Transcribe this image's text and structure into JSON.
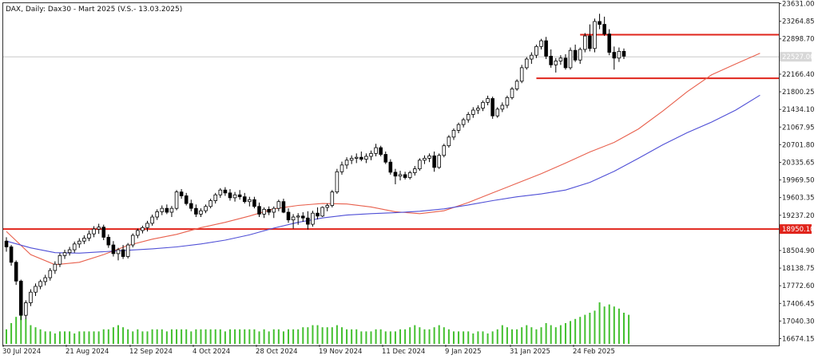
{
  "chart_data": {
    "type": "candlestick",
    "title": "DAX, Daily:  Dax30 - Mart 2025 (V.S.- 13.03.2025)",
    "current_price_label": "22527.00",
    "x_tick_labels": [
      "30 Jul 2024",
      "21 Aug 2024",
      "12 Sep 2024",
      "4 Oct 2024",
      "28 Oct 2024",
      "19 Nov 2024",
      "11 Dec 2024",
      "9 Jan 2025",
      "31 Jan 2025",
      "24 Feb 2025"
    ],
    "y_tick_labels": [
      "23631.00",
      "23264.85",
      "22898.70",
      "22166.40",
      "21800.25",
      "21434.10",
      "21067.95",
      "20701.80",
      "20335.65",
      "19969.50",
      "19603.35",
      "19237.20",
      "18504.90",
      "18138.75",
      "17772.60",
      "17406.45",
      "17040.30",
      "16674.15"
    ],
    "ylim": [
      16550,
      23640
    ],
    "horizontal_levels": [
      {
        "value": 18950.1,
        "label": "18950.10",
        "color": "#e0241b"
      },
      {
        "value": 22986,
        "label": "",
        "color": "#e0241b"
      },
      {
        "value": 22080,
        "label": "",
        "color": "#e0241b"
      }
    ],
    "moving_averages": [
      {
        "color": "#e8604d",
        "points": [
          [
            0,
            18900
          ],
          [
            5,
            18420
          ],
          [
            10,
            18210
          ],
          [
            15,
            18260
          ],
          [
            20,
            18420
          ],
          [
            25,
            18610
          ],
          [
            30,
            18740
          ],
          [
            35,
            18840
          ],
          [
            40,
            18980
          ],
          [
            45,
            19090
          ],
          [
            50,
            19220
          ],
          [
            55,
            19370
          ],
          [
            60,
            19440
          ],
          [
            65,
            19480
          ],
          [
            70,
            19470
          ],
          [
            75,
            19410
          ],
          [
            80,
            19310
          ],
          [
            85,
            19270
          ],
          [
            90,
            19330
          ],
          [
            95,
            19500
          ],
          [
            100,
            19700
          ],
          [
            105,
            19900
          ],
          [
            110,
            20100
          ],
          [
            115,
            20320
          ],
          [
            120,
            20550
          ],
          [
            125,
            20750
          ],
          [
            130,
            21030
          ],
          [
            135,
            21400
          ],
          [
            140,
            21800
          ],
          [
            145,
            22150
          ],
          [
            150,
            22380
          ],
          [
            155,
            22600
          ]
        ]
      },
      {
        "color": "#4f4fd6",
        "points": [
          [
            0,
            18700
          ],
          [
            5,
            18560
          ],
          [
            10,
            18460
          ],
          [
            15,
            18450
          ],
          [
            20,
            18480
          ],
          [
            25,
            18510
          ],
          [
            30,
            18540
          ],
          [
            35,
            18580
          ],
          [
            40,
            18640
          ],
          [
            45,
            18720
          ],
          [
            50,
            18830
          ],
          [
            55,
            18970
          ],
          [
            60,
            19090
          ],
          [
            65,
            19180
          ],
          [
            70,
            19240
          ],
          [
            75,
            19270
          ],
          [
            80,
            19290
          ],
          [
            85,
            19320
          ],
          [
            90,
            19370
          ],
          [
            95,
            19450
          ],
          [
            100,
            19540
          ],
          [
            105,
            19620
          ],
          [
            110,
            19680
          ],
          [
            115,
            19760
          ],
          [
            120,
            19920
          ],
          [
            125,
            20150
          ],
          [
            130,
            20420
          ],
          [
            135,
            20700
          ],
          [
            140,
            20950
          ],
          [
            145,
            21170
          ],
          [
            150,
            21420
          ],
          [
            155,
            21730
          ]
        ]
      }
    ],
    "ohlc": [
      [
        18700,
        18780,
        18480,
        18580
      ],
      [
        18580,
        18620,
        18190,
        18260
      ],
      [
        18260,
        18300,
        17790,
        17870
      ],
      [
        17870,
        17900,
        17060,
        17160
      ],
      [
        17160,
        17470,
        17080,
        17420
      ],
      [
        17420,
        17700,
        17350,
        17640
      ],
      [
        17640,
        17820,
        17560,
        17760
      ],
      [
        17760,
        17900,
        17700,
        17860
      ],
      [
        17860,
        18000,
        17780,
        17940
      ],
      [
        17940,
        18140,
        17880,
        18090
      ],
      [
        18090,
        18280,
        18020,
        18220
      ],
      [
        18220,
        18450,
        18160,
        18400
      ],
      [
        18400,
        18520,
        18330,
        18460
      ],
      [
        18460,
        18580,
        18400,
        18520
      ],
      [
        18520,
        18690,
        18460,
        18640
      ],
      [
        18640,
        18760,
        18560,
        18700
      ],
      [
        18700,
        18820,
        18640,
        18760
      ],
      [
        18760,
        18920,
        18700,
        18850
      ],
      [
        18850,
        19010,
        18780,
        18950
      ],
      [
        18950,
        19060,
        18850,
        18990
      ],
      [
        18990,
        19040,
        18720,
        18780
      ],
      [
        18780,
        18840,
        18560,
        18620
      ],
      [
        18620,
        18700,
        18380,
        18440
      ],
      [
        18440,
        18560,
        18300,
        18520
      ],
      [
        18520,
        18620,
        18330,
        18380
      ],
      [
        18380,
        18660,
        18340,
        18620
      ],
      [
        18620,
        18860,
        18570,
        18820
      ],
      [
        18820,
        18960,
        18760,
        18920
      ],
      [
        18920,
        19020,
        18860,
        18980
      ],
      [
        18980,
        19120,
        18900,
        19070
      ],
      [
        19070,
        19250,
        19020,
        19200
      ],
      [
        19200,
        19360,
        19140,
        19310
      ],
      [
        19310,
        19440,
        19240,
        19380
      ],
      [
        19380,
        19460,
        19260,
        19300
      ],
      [
        19300,
        19430,
        19200,
        19380
      ],
      [
        19380,
        19760,
        19340,
        19720
      ],
      [
        19720,
        19780,
        19580,
        19640
      ],
      [
        19640,
        19700,
        19440,
        19480
      ],
      [
        19480,
        19560,
        19320,
        19380
      ],
      [
        19380,
        19460,
        19200,
        19260
      ],
      [
        19260,
        19380,
        19200,
        19330
      ],
      [
        19330,
        19460,
        19280,
        19420
      ],
      [
        19420,
        19580,
        19380,
        19540
      ],
      [
        19540,
        19700,
        19480,
        19660
      ],
      [
        19660,
        19800,
        19600,
        19760
      ],
      [
        19760,
        19820,
        19640,
        19700
      ],
      [
        19700,
        19780,
        19540,
        19600
      ],
      [
        19600,
        19720,
        19520,
        19660
      ],
      [
        19660,
        19760,
        19560,
        19620
      ],
      [
        19620,
        19700,
        19480,
        19520
      ],
      [
        19520,
        19620,
        19420,
        19560
      ],
      [
        19560,
        19620,
        19380,
        19420
      ],
      [
        19420,
        19500,
        19200,
        19260
      ],
      [
        19260,
        19400,
        19180,
        19360
      ],
      [
        19360,
        19420,
        19240,
        19300
      ],
      [
        19300,
        19420,
        19180,
        19380
      ],
      [
        19380,
        19560,
        19320,
        19520
      ],
      [
        19520,
        19580,
        19280,
        19300
      ],
      [
        19300,
        19380,
        19080,
        19140
      ],
      [
        19140,
        19260,
        18960,
        19200
      ],
      [
        19200,
        19280,
        19040,
        19220
      ],
      [
        19220,
        19300,
        19100,
        19180
      ],
      [
        19180,
        19320,
        18940,
        19050
      ],
      [
        19050,
        19330,
        19000,
        19280
      ],
      [
        19280,
        19400,
        19150,
        19220
      ],
      [
        19220,
        19420,
        19200,
        19400
      ],
      [
        19400,
        19480,
        19320,
        19440
      ],
      [
        19440,
        19760,
        19400,
        19720
      ],
      [
        19720,
        20200,
        19680,
        20140
      ],
      [
        20140,
        20350,
        20080,
        20280
      ],
      [
        20280,
        20440,
        20200,
        20380
      ],
      [
        20380,
        20480,
        20300,
        20420
      ],
      [
        20420,
        20520,
        20320,
        20440
      ],
      [
        20440,
        20560,
        20360,
        20400
      ],
      [
        20400,
        20520,
        20320,
        20460
      ],
      [
        20460,
        20580,
        20380,
        20520
      ],
      [
        20520,
        20720,
        20460,
        20640
      ],
      [
        20640,
        20680,
        20460,
        20500
      ],
      [
        20500,
        20560,
        20300,
        20340
      ],
      [
        20340,
        20400,
        20080,
        20130
      ],
      [
        20130,
        20200,
        19880,
        20050
      ],
      [
        20050,
        20160,
        19960,
        20080
      ],
      [
        20080,
        20140,
        19980,
        20020
      ],
      [
        20020,
        20160,
        19980,
        20120
      ],
      [
        20120,
        20260,
        20060,
        20200
      ],
      [
        20200,
        20420,
        20160,
        20380
      ],
      [
        20380,
        20480,
        20300,
        20420
      ],
      [
        20420,
        20520,
        20340,
        20470
      ],
      [
        20470,
        20560,
        20140,
        20230
      ],
      [
        20230,
        20520,
        20200,
        20480
      ],
      [
        20480,
        20720,
        20440,
        20680
      ],
      [
        20680,
        20900,
        20640,
        20860
      ],
      [
        20860,
        21040,
        20800,
        21000
      ],
      [
        21000,
        21160,
        20940,
        21120
      ],
      [
        21120,
        21260,
        21060,
        21220
      ],
      [
        21220,
        21380,
        21160,
        21330
      ],
      [
        21330,
        21480,
        21260,
        21420
      ],
      [
        21420,
        21520,
        21340,
        21460
      ],
      [
        21460,
        21620,
        21400,
        21580
      ],
      [
        21580,
        21720,
        21520,
        21660
      ],
      [
        21660,
        21700,
        21240,
        21300
      ],
      [
        21300,
        21480,
        21260,
        21440
      ],
      [
        21440,
        21580,
        21380,
        21520
      ],
      [
        21520,
        21720,
        21460,
        21680
      ],
      [
        21680,
        21900,
        21640,
        21860
      ],
      [
        21860,
        22060,
        21820,
        22020
      ],
      [
        22020,
        22360,
        21980,
        22300
      ],
      [
        22300,
        22520,
        22260,
        22480
      ],
      [
        22480,
        22620,
        22380,
        22560
      ],
      [
        22560,
        22780,
        22500,
        22740
      ],
      [
        22740,
        22900,
        22680,
        22860
      ],
      [
        22860,
        22940,
        22480,
        22540
      ],
      [
        22540,
        22680,
        22300,
        22360
      ],
      [
        22360,
        22500,
        22200,
        22440
      ],
      [
        22440,
        22560,
        22360,
        22500
      ],
      [
        22500,
        22580,
        22260,
        22300
      ],
      [
        22300,
        22720,
        22260,
        22660
      ],
      [
        22660,
        22780,
        22420,
        22460
      ],
      [
        22460,
        22720,
        22380,
        22680
      ],
      [
        22680,
        23020,
        22620,
        22960
      ],
      [
        22960,
        23200,
        22640,
        22700
      ],
      [
        22700,
        23320,
        22620,
        23260
      ],
      [
        23260,
        23420,
        23100,
        23200
      ],
      [
        23200,
        23360,
        22960,
        23000
      ],
      [
        23000,
        23100,
        22560,
        22620
      ],
      [
        22620,
        22740,
        22260,
        22500
      ],
      [
        22500,
        22720,
        22420,
        22640
      ],
      [
        22640,
        22700,
        22480,
        22540
      ]
    ],
    "volume": [
      7,
      10,
      13,
      16,
      12,
      9,
      8,
      7,
      6,
      6,
      5,
      6,
      6,
      6,
      5,
      6,
      6,
      6,
      6,
      6,
      7,
      7,
      8,
      9,
      8,
      7,
      6,
      7,
      6,
      6,
      7,
      7,
      7,
      6,
      7,
      7,
      7,
      7,
      6,
      7,
      7,
      7,
      7,
      7,
      7,
      6,
      7,
      7,
      7,
      7,
      7,
      7,
      6,
      7,
      6,
      7,
      7,
      6,
      7,
      7,
      7,
      8,
      8,
      9,
      9,
      8,
      8,
      8,
      9,
      8,
      7,
      7,
      7,
      6,
      6,
      6,
      7,
      7,
      6,
      6,
      6,
      7,
      7,
      8,
      9,
      8,
      7,
      7,
      8,
      9,
      8,
      7,
      6,
      6,
      6,
      6,
      5,
      6,
      6,
      5,
      6,
      7,
      9,
      8,
      7,
      7,
      8,
      9,
      8,
      7,
      8,
      10,
      9,
      8,
      9,
      10,
      11,
      12,
      13,
      14,
      15,
      16,
      20,
      18,
      19,
      18,
      17,
      15,
      14
    ]
  }
}
